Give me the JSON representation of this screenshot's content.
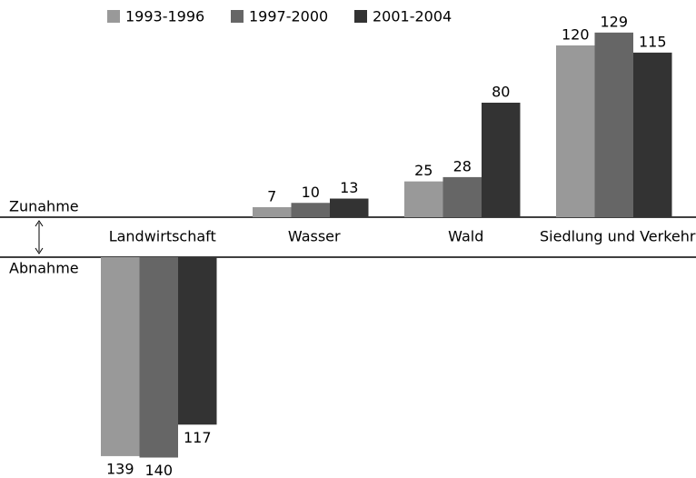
{
  "chart_data": {
    "type": "bar",
    "categories": [
      "Landwirtschaft",
      "Wasser",
      "Wald",
      "Siedlung und Verkehr"
    ],
    "series": [
      {
        "name": "1993-1996",
        "color": "#999999",
        "values": [
          -139,
          7,
          25,
          120
        ],
        "value_labels": [
          "139",
          "7",
          "25",
          "120"
        ]
      },
      {
        "name": "1997-2000",
        "color": "#666666",
        "values": [
          -140,
          10,
          28,
          129
        ],
        "value_labels": [
          "140",
          "10",
          "28",
          "129"
        ]
      },
      {
        "name": "2001-2004",
        "color": "#333333",
        "values": [
          -117,
          13,
          80,
          115
        ],
        "value_labels": [
          "117",
          "13",
          "80",
          "115"
        ]
      }
    ],
    "annotations": {
      "increase": "Zunahme",
      "decrease": "Abnahme"
    },
    "legend": "top"
  }
}
